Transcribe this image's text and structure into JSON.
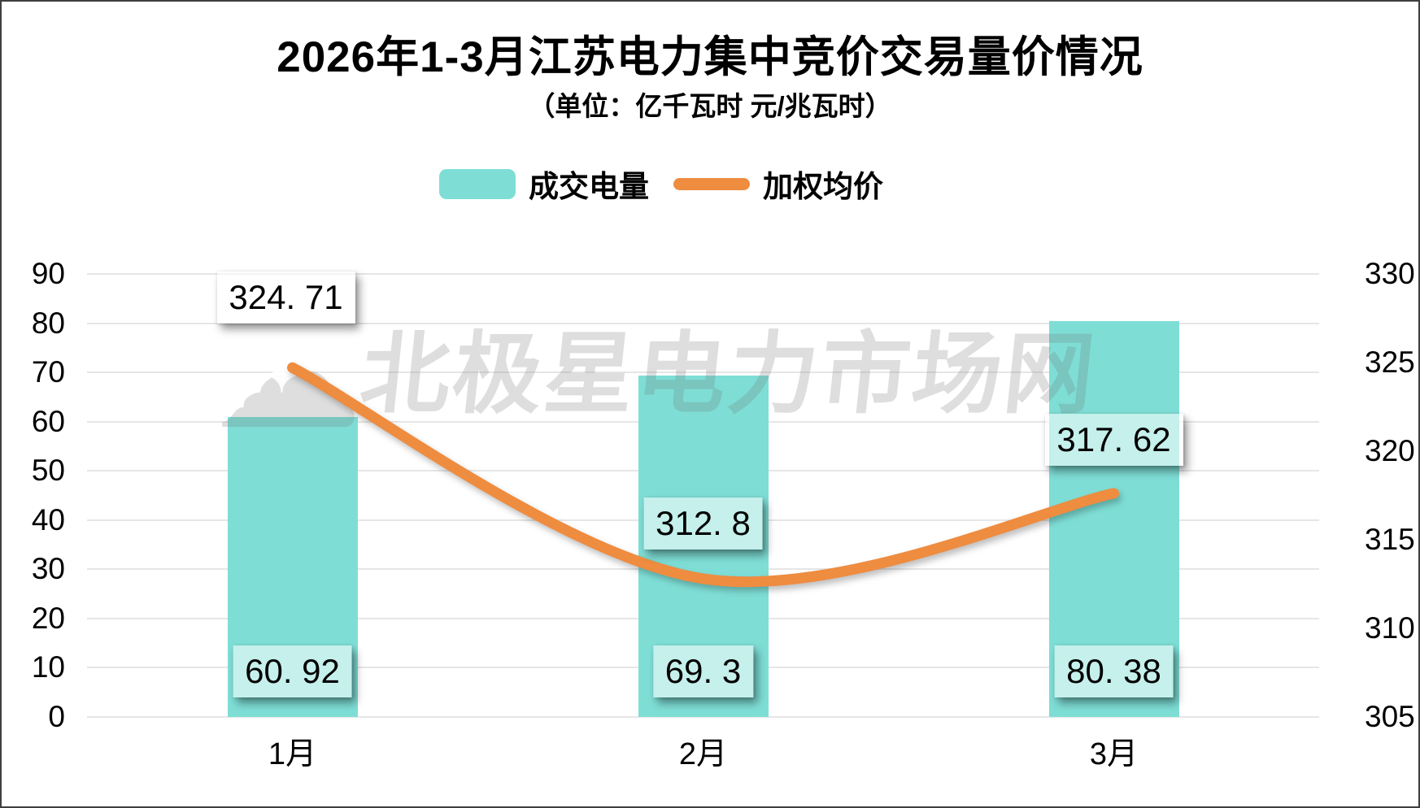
{
  "title": "2026年1-3月江苏电力集中竞价交易量价情况",
  "subtitle": "（单位：亿千瓦时 元/兆瓦时）",
  "legend": [
    {
      "label": "成交电量",
      "marker": "bar-swatch"
    },
    {
      "label": "加权均价",
      "marker": "line-swatch"
    }
  ],
  "watermark": {
    "logo_icon": "cloud-star-logo",
    "text": "北极星电力市场网"
  },
  "colors": {
    "bar": "#7EDED6",
    "line": "#EE8C40",
    "grid": "#E6E6E6",
    "text": "#000000",
    "label_box_bg": "rgba(255,255,255,0.55)",
    "watermark": "rgba(118,118,118,0.24)"
  },
  "chart_data": {
    "type": "bar+line",
    "title": "2026年1-3月江苏电力集中竞价交易量价情况",
    "subtitle_units": "（单位：亿千瓦时 元/兆瓦时）",
    "categories": [
      "1月",
      "2月",
      "3月"
    ],
    "series": [
      {
        "name": "成交电量",
        "type": "bar",
        "axis": "left",
        "values": [
          60.92,
          69.3,
          80.38
        ]
      },
      {
        "name": "加权均价",
        "type": "line",
        "axis": "right",
        "values": [
          324.71,
          312.8,
          317.62
        ]
      }
    ],
    "left_axis": {
      "min": 0,
      "max": 90,
      "step": 10,
      "ticks": [
        "90",
        "80",
        "70",
        "60",
        "50",
        "40",
        "30",
        "20",
        "10",
        "0"
      ]
    },
    "right_axis": {
      "min": 305,
      "max": 330,
      "step": 5,
      "ticks": [
        "330",
        "325",
        "320",
        "315",
        "310",
        "305"
      ]
    },
    "grid": true,
    "legend_position": "top",
    "data_labels": {
      "bar": [
        "60. 92",
        "69. 3",
        "80. 38"
      ],
      "line": [
        "324. 71",
        "312. 8",
        "317. 62"
      ]
    }
  }
}
